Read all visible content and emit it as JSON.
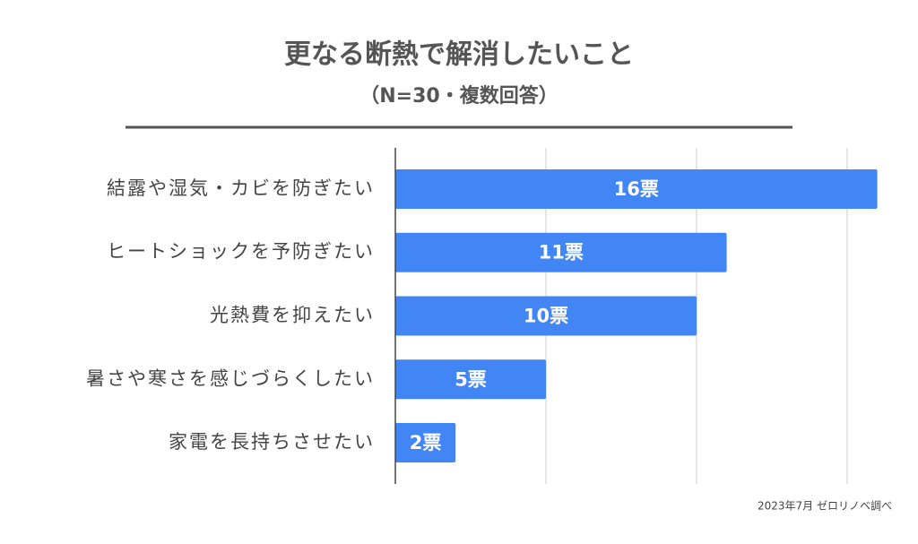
{
  "chart_data": {
    "type": "bar",
    "orientation": "horizontal",
    "title": "更なる断熱で解消したいこと",
    "subtitle": "（N=30・複数回答）",
    "categories": [
      "結露や湿気・カビを防ぎたい",
      "ヒートショックを予防ぎたい",
      "光熱費を抑えたい",
      "暑さや寒さを感じづらくしたい",
      "家電を長持ちさせたい"
    ],
    "values": [
      16,
      11,
      10,
      5,
      2
    ],
    "value_labels": [
      "16票",
      "11票",
      "10票",
      "5票",
      "2票"
    ],
    "color": "#4285f4",
    "xlim": [
      0,
      16
    ],
    "xticks": [
      0,
      5,
      10,
      15
    ],
    "grid": true,
    "footnote": "2023年7月 ゼロリノベ調べ"
  }
}
